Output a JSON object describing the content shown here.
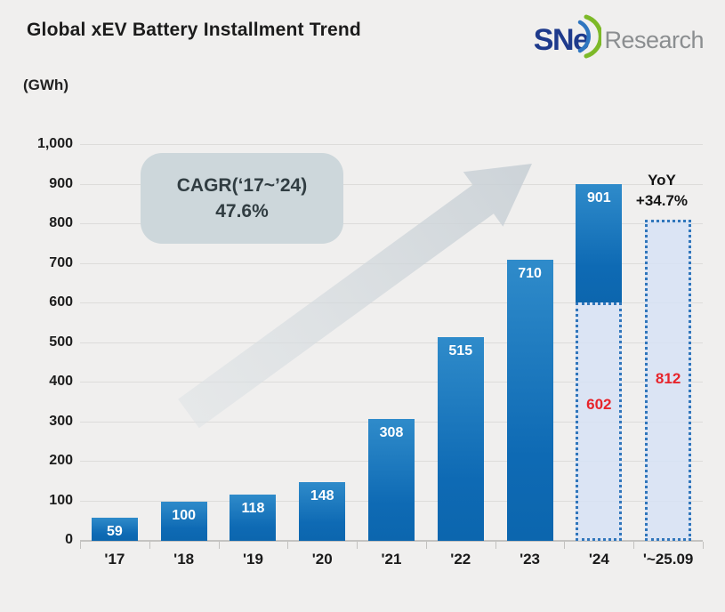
{
  "header": {
    "title": "Global xEV Battery Installment Trend",
    "unit_label": "(GWh)",
    "logo": {
      "part1": "SN",
      "part2": "e",
      "part3": "Research"
    }
  },
  "annotations": {
    "cagr_box": {
      "line1": "CAGR(‘17~’24)",
      "line2": "47.6%"
    },
    "yoy": {
      "line1": "YoY",
      "line2": "+34.7%"
    }
  },
  "chart_data": {
    "type": "bar",
    "title": "Global xEV Battery Installment Trend",
    "unit": "GWh",
    "ylim": [
      0,
      1000
    ],
    "ytick_step": 100,
    "ytick_labels": [
      "0",
      "100",
      "200",
      "300",
      "400",
      "500",
      "600",
      "700",
      "800",
      "900",
      "1,000"
    ],
    "grid": true,
    "legend": "none",
    "categories": [
      "'17",
      "'18",
      "'19",
      "'20",
      "'21",
      "'22",
      "'23",
      "'24",
      "'~25.09"
    ],
    "values": [
      59,
      100,
      118,
      148,
      308,
      515,
      710,
      901,
      812
    ],
    "cagr_17_24_pct": 47.6,
    "yoy_pct": 34.7,
    "bars": [
      {
        "category": "'17",
        "segments": [
          {
            "from": 0,
            "to": 59,
            "style": "solid",
            "label": "59"
          }
        ]
      },
      {
        "category": "'18",
        "segments": [
          {
            "from": 0,
            "to": 100,
            "style": "solid",
            "label": "100"
          }
        ]
      },
      {
        "category": "'19",
        "segments": [
          {
            "from": 0,
            "to": 118,
            "style": "solid",
            "label": "118"
          }
        ]
      },
      {
        "category": "'20",
        "segments": [
          {
            "from": 0,
            "to": 148,
            "style": "solid",
            "label": "148"
          }
        ]
      },
      {
        "category": "'21",
        "segments": [
          {
            "from": 0,
            "to": 308,
            "style": "solid",
            "label": "308"
          }
        ]
      },
      {
        "category": "'22",
        "segments": [
          {
            "from": 0,
            "to": 515,
            "style": "solid",
            "label": "515"
          }
        ]
      },
      {
        "category": "'23",
        "segments": [
          {
            "from": 0,
            "to": 710,
            "style": "solid",
            "label": "710"
          }
        ]
      },
      {
        "category": "'24",
        "segments": [
          {
            "from": 602,
            "to": 901,
            "style": "solid",
            "label": "901"
          },
          {
            "from": 0,
            "to": 602,
            "style": "dotted",
            "label": "602",
            "label_at": 0.42
          }
        ]
      },
      {
        "category": "'~25.09",
        "segments": [
          {
            "from": 0,
            "to": 812,
            "style": "dotted",
            "label": "812",
            "label_at": 0.49
          }
        ]
      }
    ]
  },
  "colors": {
    "background": "#f0efee",
    "bar_blue_top": "#2f8bca",
    "bar_blue_bottom": "#0d68b2",
    "dotted_bar_fill": "#d5e2f5",
    "dotted_bar_border": "#3076bb",
    "red_value_label": "#e7242b",
    "gridline": "#dddcda",
    "axis_line": "#c4c3c1",
    "cagr_box_bg": "#cdd7db",
    "arrow_gray": "#ccd3d8",
    "logo_blue": "#1e3a8c",
    "logo_green": "#7db928",
    "logo_gray": "#8b8e90"
  }
}
